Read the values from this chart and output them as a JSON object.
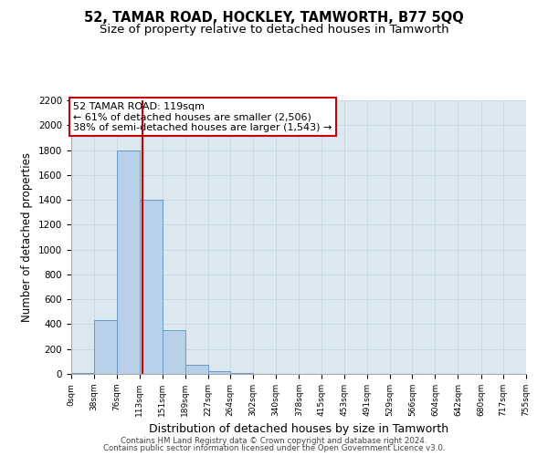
{
  "title": "52, TAMAR ROAD, HOCKLEY, TAMWORTH, B77 5QQ",
  "subtitle": "Size of property relative to detached houses in Tamworth",
  "xlabel": "Distribution of detached houses by size in Tamworth",
  "ylabel": "Number of detached properties",
  "bin_edges": [
    0,
    38,
    76,
    113,
    151,
    189,
    227,
    264,
    302,
    340,
    378,
    415,
    453,
    491,
    529,
    566,
    604,
    642,
    680,
    717,
    755
  ],
  "bar_heights": [
    10,
    430,
    1800,
    1400,
    350,
    75,
    25,
    5,
    0,
    0,
    0,
    0,
    0,
    0,
    0,
    0,
    0,
    0,
    0,
    0
  ],
  "bar_color": "#b8d0e8",
  "bar_edgecolor": "#6699cc",
  "vline_x": 119,
  "vline_color": "#cc0000",
  "ylim": [
    0,
    2200
  ],
  "yticks": [
    0,
    200,
    400,
    600,
    800,
    1000,
    1200,
    1400,
    1600,
    1800,
    2000,
    2200
  ],
  "annotation_title": "52 TAMAR ROAD: 119sqm",
  "annotation_line1": "← 61% of detached houses are smaller (2,506)",
  "annotation_line2": "38% of semi-detached houses are larger (1,543) →",
  "annotation_box_facecolor": "#ffffff",
  "annotation_box_edgecolor": "#cc0000",
  "footer1": "Contains HM Land Registry data © Crown copyright and database right 2024.",
  "footer2": "Contains public sector information licensed under the Open Government Licence v3.0.",
  "grid_color": "#c8d8e8",
  "background_color": "#dce8f0",
  "title_fontsize": 10.5,
  "subtitle_fontsize": 9.5
}
